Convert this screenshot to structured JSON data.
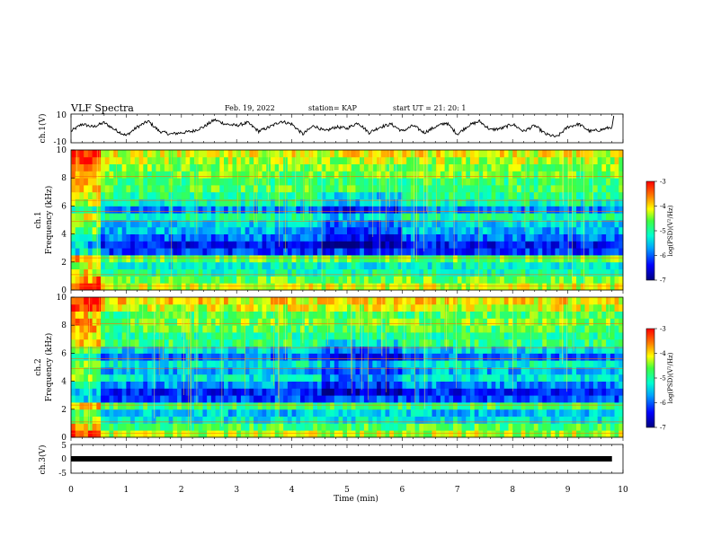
{
  "header": {
    "title": "VLF Spectra",
    "date": "Feb. 19, 2022",
    "station": "station= KAP",
    "start_time": "start  UT =   21: 20: 1"
  },
  "chart_data": [
    {
      "id": "ch1-waveform",
      "type": "line",
      "ylabel": "ch.1(V)",
      "ylim": [
        -10,
        10
      ],
      "y_ticks": [
        "10",
        "-10"
      ],
      "xlim": [
        0,
        10
      ],
      "color": "#000000",
      "x": [
        0,
        0.2,
        0.4,
        0.6,
        0.8,
        1.0,
        1.2,
        1.4,
        1.6,
        1.8,
        2.0,
        2.2,
        2.4,
        2.6,
        2.8,
        3.0,
        3.2,
        3.4,
        3.6,
        3.8,
        4.0,
        4.2,
        4.4,
        4.6,
        4.8,
        5.0,
        5.2,
        5.4,
        5.6,
        5.8,
        6.0,
        6.2,
        6.4,
        6.6,
        6.8,
        7.0,
        7.2,
        7.4,
        7.6,
        7.8,
        8.0,
        8.2,
        8.4,
        8.6,
        8.8,
        9.0,
        9.2,
        9.4,
        9.6,
        9.8
      ],
      "values": [
        -2,
        3,
        1,
        4,
        -1,
        -5,
        1,
        5,
        -2,
        -4,
        -3,
        -2,
        1,
        6,
        3,
        2,
        4,
        -2,
        1,
        5,
        3,
        -4,
        2,
        -2,
        1,
        0,
        4,
        -3,
        1,
        3,
        -2,
        2,
        -3,
        1,
        4,
        -4,
        2,
        5,
        -1,
        0,
        3,
        -2,
        2,
        -4,
        -6,
        1,
        3,
        -2,
        -1,
        1
      ]
    },
    {
      "id": "ch1-spectrogram",
      "type": "heatmap",
      "ylabel": "ch.1\nFrequency (kHz)",
      "ylim": [
        0,
        10
      ],
      "y_ticks": [
        "0",
        "2",
        "4",
        "6",
        "8",
        "10"
      ],
      "xlim": [
        0,
        10
      ],
      "colorbar": {
        "label": "log(PSD)(V²/Hz)",
        "ticks": [
          "-3",
          "-4",
          "-5",
          "-6",
          "-7"
        ],
        "range": [
          -7,
          -3
        ]
      },
      "freq_khz": [
        0.25,
        0.75,
        1.25,
        1.75,
        2.25,
        2.75,
        3.25,
        3.75,
        4.25,
        4.75,
        5.25,
        5.75,
        6.25,
        6.75,
        7.25,
        7.75,
        8.25,
        8.75,
        9.25,
        9.75
      ],
      "typical_log_psd": [
        -4.2,
        -4.6,
        -5.0,
        -5.2,
        -4.6,
        -6.2,
        -6.4,
        -5.9,
        -5.6,
        -5.4,
        -5.0,
        -5.8,
        -5.1,
        -4.9,
        -4.7,
        -4.8,
        -4.6,
        -4.5,
        -4.3,
        -4.1
      ]
    },
    {
      "id": "ch2-spectrogram",
      "type": "heatmap",
      "ylabel": "ch.2\nFrequency (kHz)",
      "ylim": [
        0,
        10
      ],
      "y_ticks": [
        "0",
        "2",
        "4",
        "6",
        "8",
        "10"
      ],
      "xlim": [
        0,
        10
      ],
      "colorbar": {
        "label": "log(PSD)(V²/Hz)",
        "ticks": [
          "-3",
          "-4",
          "-5",
          "-6",
          "-7"
        ],
        "range": [
          -7,
          -3
        ]
      },
      "freq_khz": [
        0.25,
        0.75,
        1.25,
        1.75,
        2.25,
        2.75,
        3.25,
        3.75,
        4.25,
        4.75,
        5.25,
        5.75,
        6.25,
        6.75,
        7.25,
        7.75,
        8.25,
        8.75,
        9.25,
        9.75
      ],
      "typical_log_psd": [
        -4.3,
        -4.7,
        -5.3,
        -5.5,
        -4.8,
        -6.1,
        -6.3,
        -5.8,
        -5.3,
        -5.6,
        -5.2,
        -5.9,
        -5.4,
        -4.8,
        -4.9,
        -4.7,
        -4.5,
        -4.7,
        -4.2,
        -4.0
      ]
    },
    {
      "id": "ch3-waveform",
      "type": "line",
      "ylabel": "ch.3(V)",
      "ylim": [
        -5,
        5
      ],
      "y_ticks": [
        "5",
        "0",
        "-5"
      ],
      "xlim": [
        0,
        10
      ],
      "color": "#000000",
      "x": [
        0,
        9.8
      ],
      "values": [
        0,
        0
      ]
    }
  ],
  "time_axis": {
    "label": "Time  (min)",
    "ticks": [
      "0",
      "1",
      "2",
      "3",
      "4",
      "5",
      "6",
      "7",
      "8",
      "9",
      "10"
    ]
  }
}
